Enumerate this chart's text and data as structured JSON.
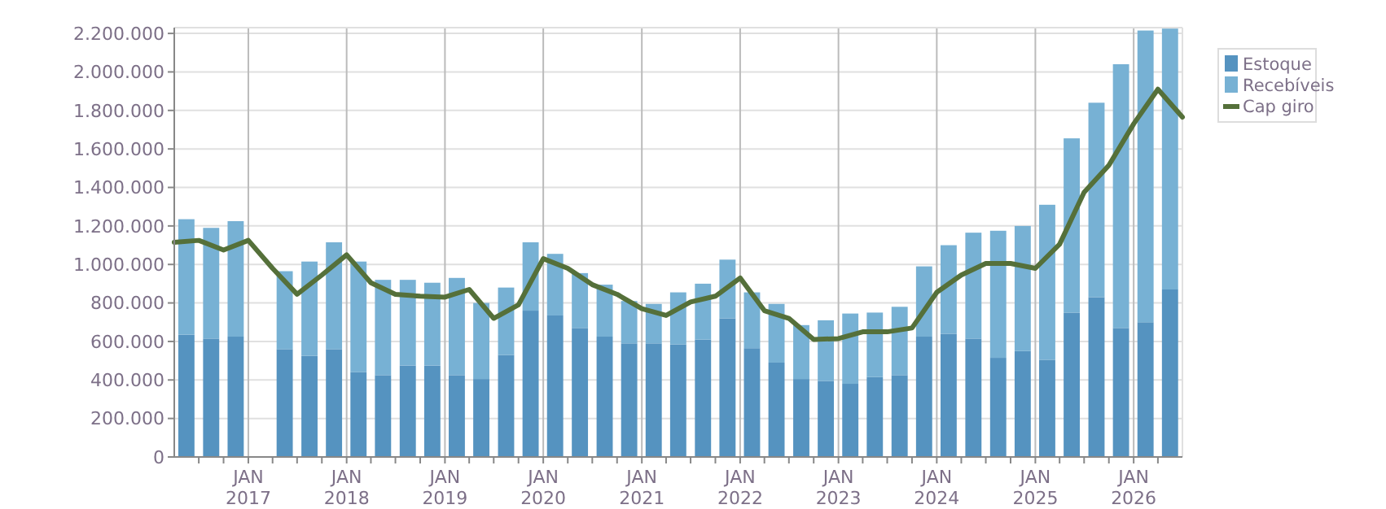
{
  "chart_data": {
    "type": "bar",
    "stacked": true,
    "grid": true,
    "legend": "top right",
    "xlim": [
      "2016-04-01",
      "2026-07-01"
    ],
    "ylim": [
      0,
      2230000
    ],
    "yticks": [
      0,
      {
        "value": 200000,
        "label": "200.000"
      },
      {
        "value": 400000,
        "label": "400.000"
      },
      {
        "value": 600000,
        "label": "600.000"
      },
      {
        "value": 800000,
        "label": "800.000"
      },
      {
        "value": 1000000,
        "label": "1.000.000"
      },
      {
        "value": 1200000,
        "label": "1.200.000"
      },
      {
        "value": 1400000,
        "label": "1.400.000"
      },
      {
        "value": 1600000,
        "label": "1.600.000"
      },
      {
        "value": 1800000,
        "label": "1.800.000"
      },
      {
        "value": 2000000,
        "label": "2.000.000"
      },
      {
        "value": 2200000,
        "label": "2.200.000"
      }
    ],
    "xticks": [
      {
        "value": "2016-07-01",
        "label": null
      },
      {
        "value": "2016-10-01",
        "label": null
      },
      {
        "value": "2017-01-01",
        "label": "JAN 2017"
      },
      {
        "value": "2017-04-01",
        "label": null
      },
      {
        "value": "2017-07-01",
        "label": null
      },
      {
        "value": "2017-10-01",
        "label": null
      },
      {
        "value": "2018-01-01",
        "label": "JAN 2018"
      },
      {
        "value": "2018-04-01",
        "label": null
      },
      {
        "value": "2018-07-01",
        "label": null
      },
      {
        "value": "2018-10-01",
        "label": null
      },
      {
        "value": "2019-01-01",
        "label": "JAN 2019"
      },
      {
        "value": "2019-04-01",
        "label": null
      },
      {
        "value": "2019-07-01",
        "label": null
      },
      {
        "value": "2019-10-01",
        "label": null
      },
      {
        "value": "2020-01-01",
        "label": "JAN 2020"
      },
      {
        "value": "2020-04-01",
        "label": null
      },
      {
        "value": "2020-07-01",
        "label": null
      },
      {
        "value": "2020-10-01",
        "label": null
      },
      {
        "value": "2021-01-01",
        "label": "JAN 2021"
      },
      {
        "value": "2021-04-01",
        "label": null
      },
      {
        "value": "2021-07-01",
        "label": null
      },
      {
        "value": "2021-10-01",
        "label": null
      },
      {
        "value": "2022-01-01",
        "label": "JAN 2022"
      },
      {
        "value": "2022-04-01",
        "label": null
      },
      {
        "value": "2022-07-01",
        "label": null
      },
      {
        "value": "2022-10-01",
        "label": null
      },
      {
        "value": "2023-01-01",
        "label": "JAN 2023"
      },
      {
        "value": "2023-04-01",
        "label": null
      },
      {
        "value": "2023-07-01",
        "label": null
      },
      {
        "value": "2023-10-01",
        "label": null
      },
      {
        "value": "2024-01-01",
        "label": "JAN 2024"
      },
      {
        "value": "2024-04-01",
        "label": null
      },
      {
        "value": "2024-07-01",
        "label": null
      },
      {
        "value": "2024-10-01",
        "label": null
      },
      {
        "value": "2025-01-01",
        "label": "JAN 2025"
      },
      {
        "value": "2025-04-01",
        "label": null
      },
      {
        "value": "2025-07-01",
        "label": null
      },
      {
        "value": "2025-10-01",
        "label": null
      },
      {
        "value": "2026-01-01",
        "label": "JAN 2026"
      },
      {
        "value": "2026-04-01",
        "label": null
      }
    ],
    "x": [
      "2016-05-16",
      "2016-08-16",
      "2016-11-15",
      "2017-02-14",
      "2017-05-16",
      "2017-08-16",
      "2017-11-15",
      "2018-02-14",
      "2018-05-16",
      "2018-08-16",
      "2018-11-15",
      "2019-02-14",
      "2019-05-16",
      "2019-08-16",
      "2019-11-15",
      "2020-02-14",
      "2020-05-16",
      "2020-08-16",
      "2020-11-15",
      "2021-02-14",
      "2021-05-16",
      "2021-08-16",
      "2021-11-15",
      "2022-02-14",
      "2022-05-16",
      "2022-08-16",
      "2022-11-15",
      "2023-02-14",
      "2023-05-16",
      "2023-08-16",
      "2023-11-15",
      "2024-02-14",
      "2024-05-16",
      "2024-08-16",
      "2024-11-15",
      "2025-02-14",
      "2025-05-16",
      "2025-08-16",
      "2025-11-15",
      "2026-02-14",
      "2026-05-16"
    ],
    "series": [
      {
        "name": "Estoque",
        "color": "#5593c0",
        "values": [
          635000,
          615000,
          625000,
          null,
          560000,
          525000,
          560000,
          440000,
          425000,
          475000,
          475000,
          425000,
          405000,
          530000,
          760000,
          735000,
          670000,
          625000,
          590000,
          590000,
          585000,
          610000,
          720000,
          565000,
          490000,
          405000,
          395000,
          380000,
          415000,
          425000,
          625000,
          640000,
          615000,
          515000,
          550000,
          505000,
          750000,
          830000,
          670000,
          700000,
          870000
        ]
      },
      {
        "name": "Recebíveis",
        "color": "#77b1d4",
        "values": [
          600000,
          575000,
          600000,
          null,
          405000,
          490000,
          555000,
          575000,
          495000,
          445000,
          430000,
          505000,
          395000,
          350000,
          355000,
          320000,
          285000,
          270000,
          220000,
          205000,
          270000,
          290000,
          305000,
          290000,
          305000,
          280000,
          315000,
          365000,
          335000,
          355000,
          365000,
          460000,
          550000,
          660000,
          650000,
          805000,
          905000,
          1010000,
          1370000,
          1515000,
          1355000
        ]
      },
      {
        "name": "Cap giro",
        "type": "line",
        "color": "#55703a",
        "marker": "none",
        "line_style": "solid",
        "x": [
          "2016-04-01",
          "2016-07-01",
          "2016-10-01",
          "2017-01-01",
          "2017-04-01",
          "2017-07-01",
          "2017-10-01",
          "2018-01-01",
          "2018-04-01",
          "2018-07-01",
          "2018-10-01",
          "2019-01-01",
          "2019-04-01",
          "2019-07-01",
          "2019-10-01",
          "2020-01-01",
          "2020-04-01",
          "2020-07-01",
          "2020-10-01",
          "2021-01-01",
          "2021-04-01",
          "2021-07-01",
          "2021-10-01",
          "2022-01-01",
          "2022-04-01",
          "2022-07-01",
          "2022-10-01",
          "2023-01-01",
          "2023-04-01",
          "2023-07-01",
          "2023-10-01",
          "2024-01-01",
          "2024-04-01",
          "2024-07-01",
          "2024-10-01",
          "2025-01-01",
          "2025-04-01",
          "2025-07-01",
          "2025-10-01",
          "2026-01-01",
          "2026-04-01",
          "2026-07-01"
        ],
        "values": [
          1115000,
          1125000,
          1075000,
          1125000,
          980000,
          845000,
          945000,
          1050000,
          905000,
          845000,
          835000,
          830000,
          870000,
          720000,
          790000,
          1030000,
          980000,
          895000,
          845000,
          770000,
          735000,
          805000,
          835000,
          930000,
          760000,
          720000,
          610000,
          615000,
          650000,
          650000,
          670000,
          855000,
          945000,
          1005000,
          1005000,
          980000,
          1105000,
          1375000,
          1515000,
          1730000,
          1910000,
          1765000
        ]
      }
    ]
  }
}
